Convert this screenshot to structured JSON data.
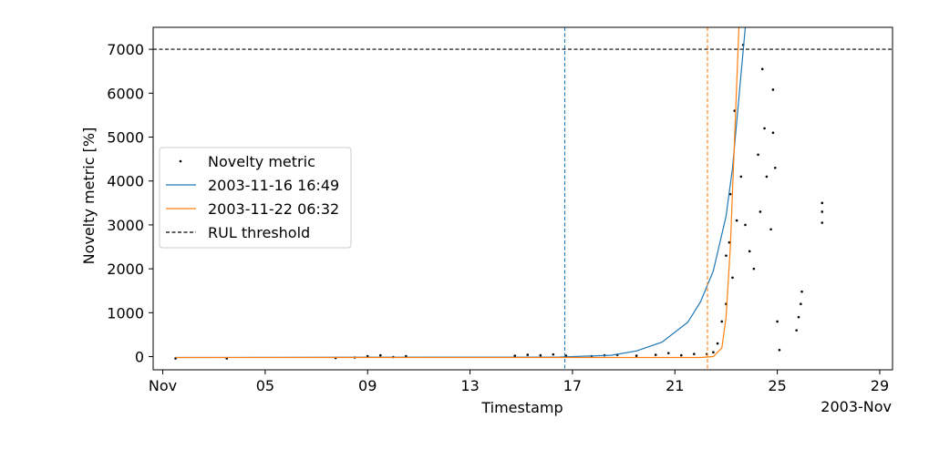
{
  "chart_data": {
    "type": "scatter",
    "title": "",
    "xlabel": "Timestamp",
    "ylabel": "Novelty metric [%]",
    "x_offset_label": "2003-Nov",
    "xlim": [
      "2003-10-31 15:00",
      "2003-11-29 12:00"
    ],
    "ylim": [
      -300,
      7500
    ],
    "x_ticks": [
      {
        "date": "2003-11-01",
        "label": "Nov"
      },
      {
        "date": "2003-11-05",
        "label": "05"
      },
      {
        "date": "2003-11-09",
        "label": "09"
      },
      {
        "date": "2003-11-13",
        "label": "13"
      },
      {
        "date": "2003-11-17",
        "label": "17"
      },
      {
        "date": "2003-11-21",
        "label": "21"
      },
      {
        "date": "2003-11-25",
        "label": "25"
      },
      {
        "date": "2003-11-29",
        "label": "29"
      }
    ],
    "y_ticks": [
      0,
      1000,
      2000,
      3000,
      4000,
      5000,
      6000,
      7000
    ],
    "legend_position": "center-left",
    "grid": false,
    "series": [
      {
        "name": "Novelty metric",
        "kind": "scatter",
        "color": "#000000",
        "points": [
          {
            "x": "2003-11-01 12:00",
            "y": -40
          },
          {
            "x": "2003-11-03 12:00",
            "y": -40
          },
          {
            "x": "2003-11-07 18:00",
            "y": -30
          },
          {
            "x": "2003-11-08 12:00",
            "y": -20
          },
          {
            "x": "2003-11-09 00:00",
            "y": 10
          },
          {
            "x": "2003-11-09 12:00",
            "y": 30
          },
          {
            "x": "2003-11-10 00:00",
            "y": -10
          },
          {
            "x": "2003-11-10 12:00",
            "y": 10
          },
          {
            "x": "2003-11-14 18:00",
            "y": 20
          },
          {
            "x": "2003-11-15 06:00",
            "y": 40
          },
          {
            "x": "2003-11-15 18:00",
            "y": 30
          },
          {
            "x": "2003-11-16 06:00",
            "y": 50
          },
          {
            "x": "2003-11-16 18:00",
            "y": 20
          },
          {
            "x": "2003-11-17 18:00",
            "y": 10
          },
          {
            "x": "2003-11-18 06:00",
            "y": 30
          },
          {
            "x": "2003-11-18 18:00",
            "y": 40
          },
          {
            "x": "2003-11-19 12:00",
            "y": 20
          },
          {
            "x": "2003-11-20 06:00",
            "y": 40
          },
          {
            "x": "2003-11-20 18:00",
            "y": 80
          },
          {
            "x": "2003-11-21 06:00",
            "y": 30
          },
          {
            "x": "2003-11-21 18:00",
            "y": 60
          },
          {
            "x": "2003-11-22 06:00",
            "y": 60
          },
          {
            "x": "2003-11-22 12:00",
            "y": 100
          },
          {
            "x": "2003-11-22 16:00",
            "y": 300
          },
          {
            "x": "2003-11-22 20:00",
            "y": 800
          },
          {
            "x": "2003-11-23 00:00",
            "y": 1200
          },
          {
            "x": "2003-11-23 00:00",
            "y": 2300
          },
          {
            "x": "2003-11-23 03:00",
            "y": 2600
          },
          {
            "x": "2003-11-23 04:00",
            "y": 3700
          },
          {
            "x": "2003-11-23 06:00",
            "y": 1800
          },
          {
            "x": "2003-11-23 08:00",
            "y": 5600
          },
          {
            "x": "2003-11-23 10:00",
            "y": 3100
          },
          {
            "x": "2003-11-23 14:00",
            "y": 4100
          },
          {
            "x": "2003-11-23 16:00",
            "y": 7100
          },
          {
            "x": "2003-11-23 18:00",
            "y": 3000
          },
          {
            "x": "2003-11-23 22:00",
            "y": 2400
          },
          {
            "x": "2003-11-24 02:00",
            "y": 2000
          },
          {
            "x": "2003-11-24 06:00",
            "y": 4600
          },
          {
            "x": "2003-11-24 08:00",
            "y": 3300
          },
          {
            "x": "2003-11-24 10:00",
            "y": 6550
          },
          {
            "x": "2003-11-24 12:00",
            "y": 5200
          },
          {
            "x": "2003-11-24 14:00",
            "y": 4100
          },
          {
            "x": "2003-11-24 18:00",
            "y": 2900
          },
          {
            "x": "2003-11-24 20:00",
            "y": 6080
          },
          {
            "x": "2003-11-24 20:00",
            "y": 5100
          },
          {
            "x": "2003-11-24 22:00",
            "y": 4300
          },
          {
            "x": "2003-11-25 00:00",
            "y": 800
          },
          {
            "x": "2003-11-25 02:00",
            "y": 150
          },
          {
            "x": "2003-11-25 18:00",
            "y": 600
          },
          {
            "x": "2003-11-25 20:00",
            "y": 900
          },
          {
            "x": "2003-11-25 22:00",
            "y": 1200
          },
          {
            "x": "2003-11-25 23:00",
            "y": 1480
          },
          {
            "x": "2003-11-26 18:00",
            "y": 3050
          },
          {
            "x": "2003-11-26 18:00",
            "y": 3300
          },
          {
            "x": "2003-11-26 18:00",
            "y": 3500
          }
        ]
      },
      {
        "name": "2003-11-16 16:49",
        "kind": "line",
        "color": "#1f77b4",
        "points": [
          {
            "x": "2003-11-01 12:00",
            "y": -20
          },
          {
            "x": "2003-11-16 12:00",
            "y": -10
          },
          {
            "x": "2003-11-18 12:00",
            "y": 30
          },
          {
            "x": "2003-11-19 12:00",
            "y": 130
          },
          {
            "x": "2003-11-20 12:00",
            "y": 330
          },
          {
            "x": "2003-11-21 12:00",
            "y": 780
          },
          {
            "x": "2003-11-22 00:00",
            "y": 1250
          },
          {
            "x": "2003-11-22 12:00",
            "y": 1950
          },
          {
            "x": "2003-11-23 00:00",
            "y": 3200
          },
          {
            "x": "2003-11-23 06:00",
            "y": 4300
          },
          {
            "x": "2003-11-23 12:00",
            "y": 5900
          },
          {
            "x": "2003-11-23 18:00",
            "y": 7500
          }
        ]
      },
      {
        "name": "2003-11-22 06:32",
        "kind": "line",
        "color": "#ff7f0e",
        "points": [
          {
            "x": "2003-11-01 12:00",
            "y": -20
          },
          {
            "x": "2003-11-22 00:00",
            "y": -20
          },
          {
            "x": "2003-11-22 12:00",
            "y": 0
          },
          {
            "x": "2003-11-22 20:00",
            "y": 200
          },
          {
            "x": "2003-11-23 00:00",
            "y": 900
          },
          {
            "x": "2003-11-23 04:00",
            "y": 2500
          },
          {
            "x": "2003-11-23 08:00",
            "y": 5000
          },
          {
            "x": "2003-11-23 12:00",
            "y": 7500
          }
        ]
      },
      {
        "name": "RUL threshold",
        "kind": "hline",
        "color": "#000000",
        "y": 7000
      }
    ],
    "vertical_markers": [
      {
        "x": "2003-11-16 16:49",
        "color": "#1f77b4"
      },
      {
        "x": "2003-11-22 06:32",
        "color": "#ff7f0e"
      }
    ]
  }
}
